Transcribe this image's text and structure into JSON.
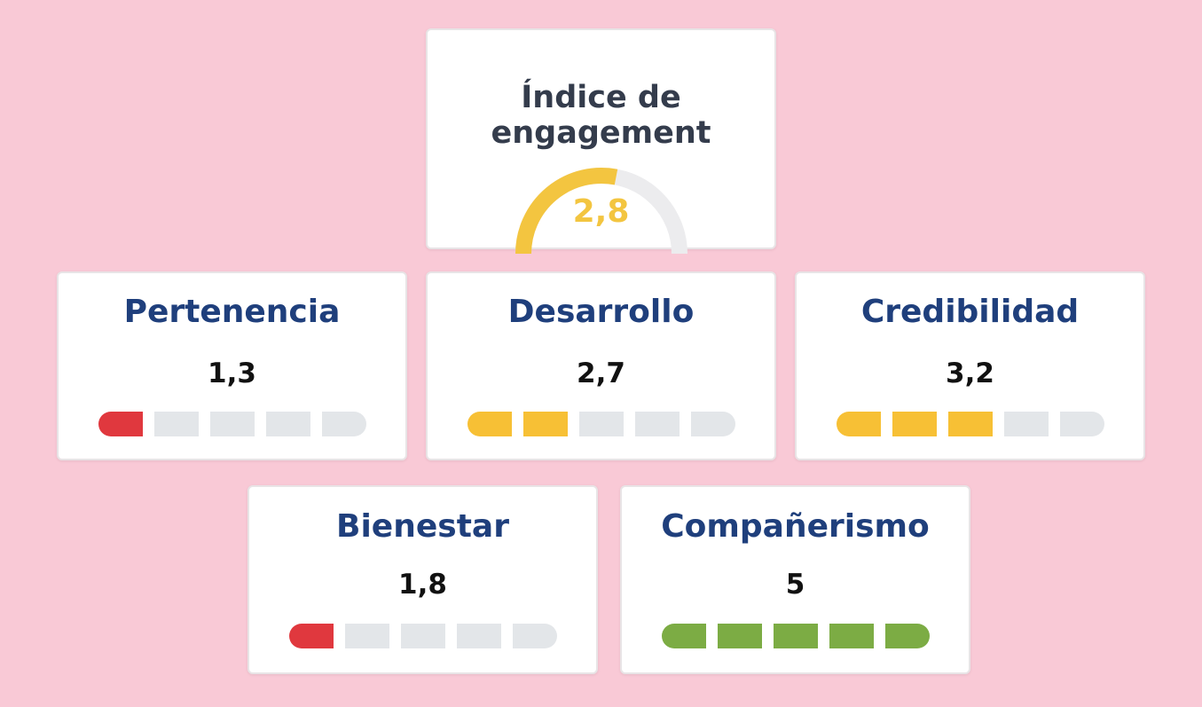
{
  "engagement": {
    "title_line1": "Índice de",
    "title_line2": "engagement",
    "value": "2,8",
    "score": 2.8,
    "max": 5,
    "color": "#f3c540",
    "track_color": "#ececee"
  },
  "colors": {
    "low": "#e0383e",
    "mid": "#f7c035",
    "high": "#7cac44",
    "empty": "#e3e6e9"
  },
  "metrics": [
    {
      "name": "Pertenencia",
      "value": "1,3",
      "filled_segments": 1,
      "color": "#e0383e"
    },
    {
      "name": "Desarrollo",
      "value": "2,7",
      "filled_segments": 2,
      "color": "#f7c035"
    },
    {
      "name": "Credibilidad",
      "value": "3,2",
      "filled_segments": 3,
      "color": "#f7c035"
    },
    {
      "name": "Bienestar",
      "value": "1,8",
      "filled_segments": 1,
      "color": "#e0383e"
    },
    {
      "name": "Compañerismo",
      "value": "5",
      "filled_segments": 5,
      "color": "#7cac44"
    }
  ]
}
